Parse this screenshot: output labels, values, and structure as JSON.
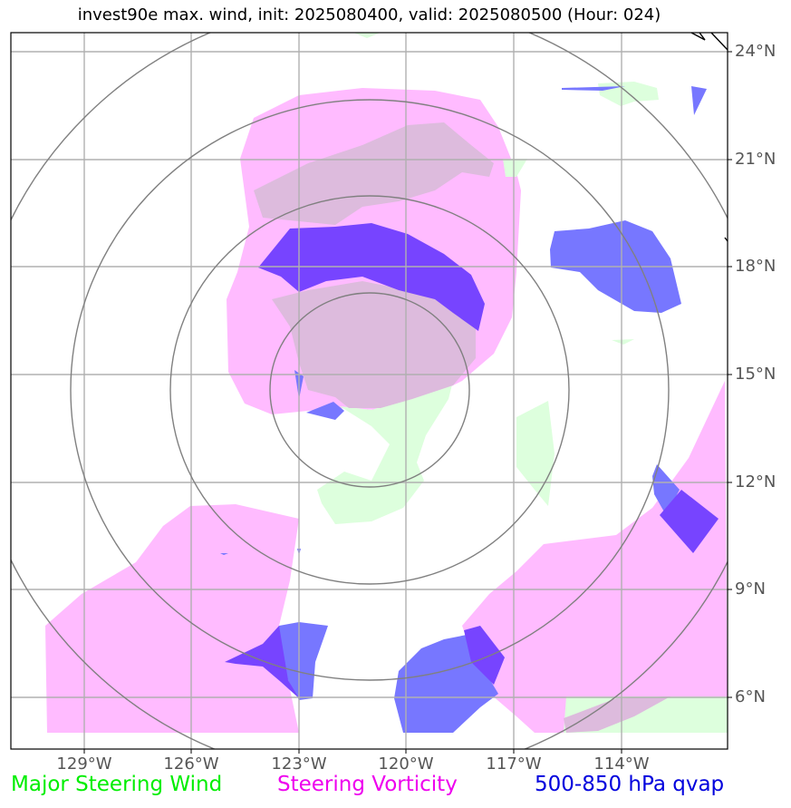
{
  "title": "invest90e max. wind, init: 2025080400, valid: 2025080500 (Hour: 024)",
  "map": {
    "lat_ticks": [
      "24°N",
      "21°N",
      "18°N",
      "15°N",
      "12°N",
      "9°N",
      "6°N"
    ],
    "lon_ticks": [
      "129°W",
      "126°W",
      "123°W",
      "120°W",
      "117°W",
      "114°W"
    ],
    "center": {
      "lon": -121.0,
      "lat": 14.8
    },
    "range_rings": 4,
    "colors": {
      "steering_wind": "#ddffdd",
      "steering_vorticity": "#ffbbff",
      "qvap": "#7777ff",
      "overlap_wind_vorticity": "#ddbbdd",
      "overlap_vorticity_qvap": "#7744ff",
      "rings": "#808080",
      "grid": "#b0b0b0"
    }
  },
  "legend": {
    "items": [
      {
        "label": "Major Steering Wind",
        "color": "#00ee00"
      },
      {
        "label": "Steering Vorticity",
        "color": "#ee00ee"
      },
      {
        "label": "500-850 hPa qvap",
        "color": "#0000dd"
      }
    ]
  }
}
